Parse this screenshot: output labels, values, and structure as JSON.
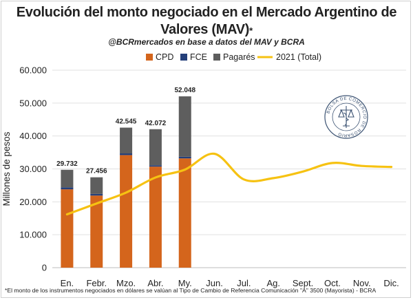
{
  "title_line1": "Evolución del monto negociado en el Mercado Argentino de",
  "title_line2": "Valores (MAV)",
  "title_star": "*",
  "subtitle": "@BCRmercados en base a datos del MAV y BCRA",
  "footnote": "*El monto de los instrumentos negociados en dólares se valúan al Tipo de Cambio de Referencia Comunicación \"A\" 3500 (Mayorista) - BCRA",
  "seal_text": "BOLSA DE COMERCIO DE ROSARIO",
  "colors": {
    "CPD": "#d4651c",
    "FCE": "#243f7a",
    "Pagares": "#5e5e5e",
    "line2021": "#f6c212"
  },
  "chart_data": {
    "type": "bar",
    "title": "Evolución del monto negociado en el Mercado Argentino de Valores (MAV)",
    "ylabel": "Millones de pesos",
    "ylim": [
      0,
      60000
    ],
    "yticks": [
      0,
      10000,
      20000,
      30000,
      40000,
      50000,
      60000
    ],
    "ytick_labels": [
      "0",
      "10.000",
      "20.000",
      "30.000",
      "40.000",
      "50.000",
      "60.000"
    ],
    "grid": true,
    "legend_position": "top",
    "categories": [
      "En.",
      "Febr.",
      "Mzo.",
      "Abr.",
      "My.",
      "Jun.",
      "Jul.",
      "Ag.",
      "Sept.",
      "Oct.",
      "Nov.",
      "Dic."
    ],
    "stacked_series": [
      {
        "name": "CPD",
        "values": [
          23800,
          21900,
          34200,
          30700,
          33200,
          null,
          null,
          null,
          null,
          null,
          null,
          null
        ]
      },
      {
        "name": "FCE",
        "values": [
          600,
          500,
          500,
          400,
          500,
          null,
          null,
          null,
          null,
          null,
          null,
          null
        ]
      },
      {
        "name": "Pagarés",
        "values": [
          5332,
          5056,
          7845,
          10972,
          18348,
          null,
          null,
          null,
          null,
          null,
          null,
          null
        ]
      }
    ],
    "bar_totals": [
      29732,
      27456,
      42545,
      42072,
      52048,
      null,
      null,
      null,
      null,
      null,
      null,
      null
    ],
    "bar_total_labels": [
      "29.732",
      "27.456",
      "42.545",
      "42.072",
      "52.048"
    ],
    "line_series": {
      "name": "2021 (Total)",
      "values": [
        16200,
        19500,
        22800,
        27400,
        29800,
        34600,
        26800,
        27200,
        29200,
        31800,
        30900,
        30600
      ]
    }
  }
}
